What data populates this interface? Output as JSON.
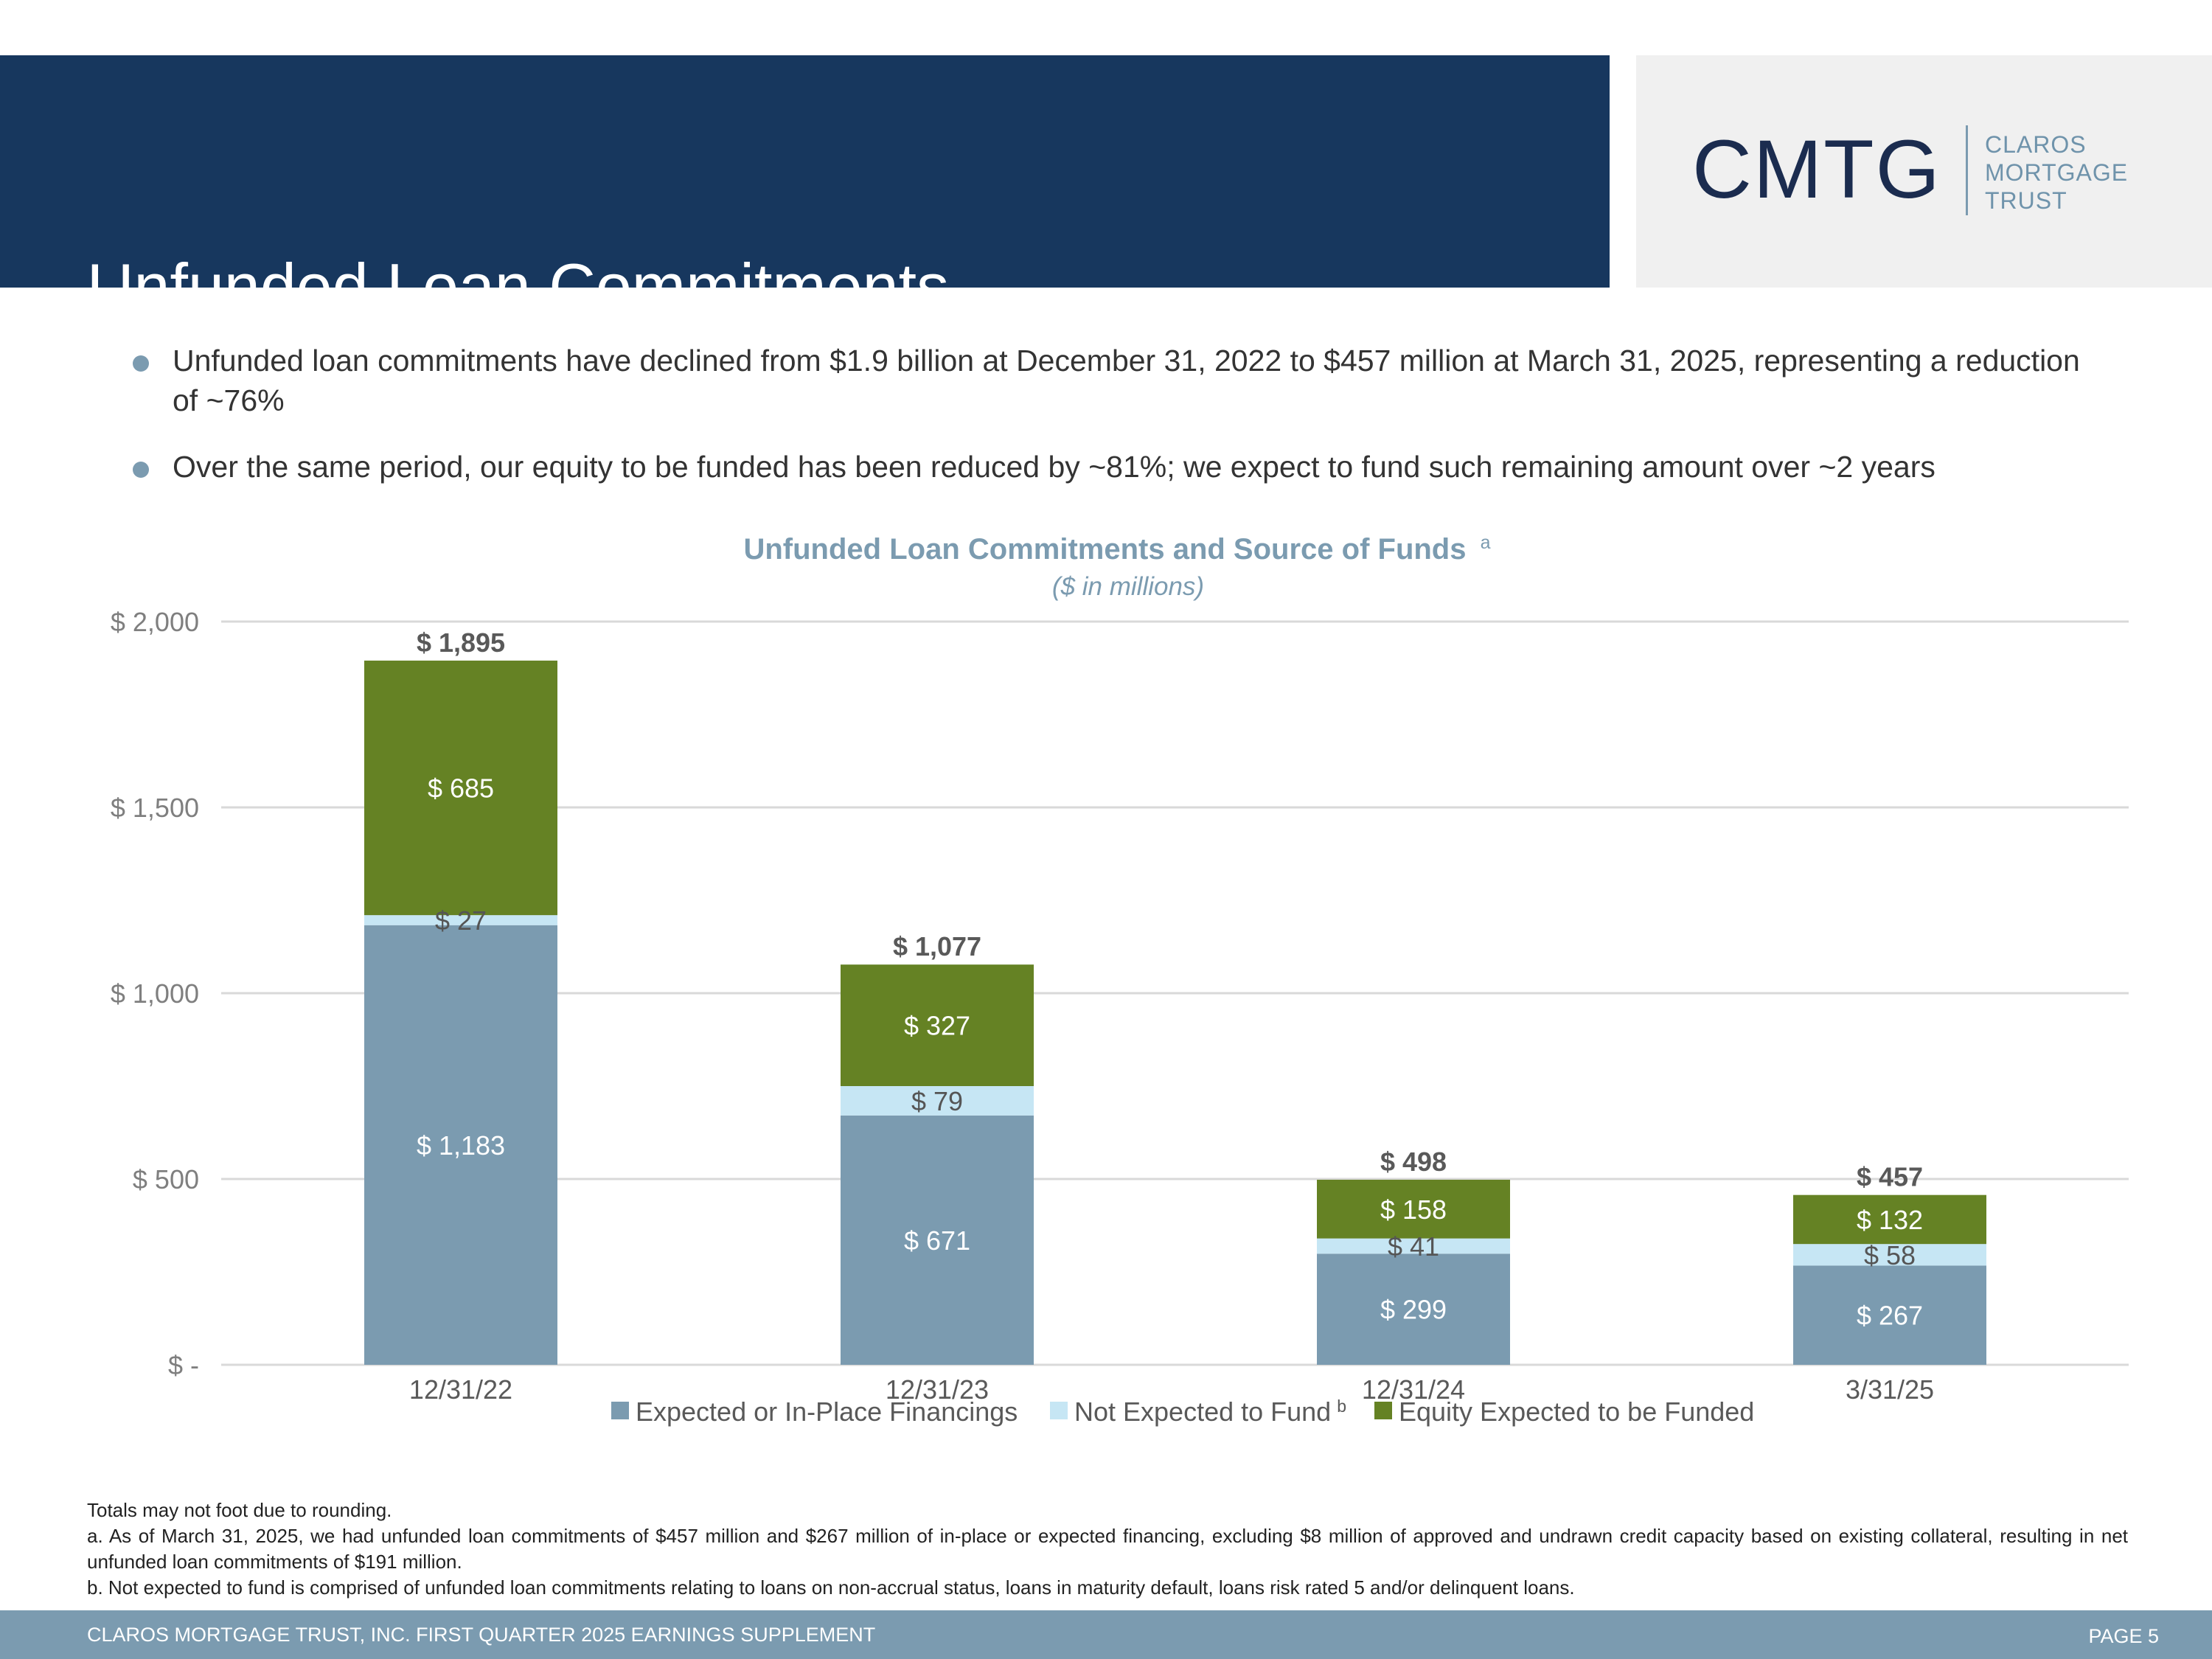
{
  "header": {
    "title": "Unfunded Loan Commitments",
    "logo_mark": "CMTG",
    "logo_words": [
      "CLAROS",
      "MORTGAGE",
      "TRUST"
    ]
  },
  "bullets": [
    "Unfunded loan commitments have declined from $1.9 billion at December 31, 2022 to $457 million at March 31, 2025, representing a reduction of ~76%",
    "Over the same period, our equity to be funded has been reduced by ~81%; we expect to fund such remaining amount over ~2 years"
  ],
  "chart_data": {
    "type": "bar",
    "stacked": true,
    "title": "Unfunded Loan Commitments and Source of Funds",
    "title_superscript": "a",
    "subtitle": "($ in millions)",
    "categories": [
      "12/31/22",
      "12/31/23",
      "12/31/24",
      "3/31/25"
    ],
    "ylim": [
      0,
      2000
    ],
    "yticks": [
      0,
      500,
      1000,
      1500,
      2000
    ],
    "ytick_labels": [
      "$ -",
      "$ 500",
      "$ 1,000",
      "$ 1,500",
      "$ 2,000"
    ],
    "grid": true,
    "legend_position": "bottom",
    "series": [
      {
        "name": "Expected or In-Place Financings",
        "superscript": "",
        "color": "#7b9bb0",
        "label_color": "#ffffff",
        "values": [
          1183,
          671,
          299,
          267
        ],
        "labels": [
          "$ 1,183",
          "$ 671",
          "$ 299",
          "$ 267"
        ]
      },
      {
        "name": "Not Expected to Fund",
        "superscript": "b",
        "color": "#c6e6f4",
        "label_color": "#555555",
        "values": [
          27,
          79,
          41,
          58
        ],
        "labels": [
          "$ 27",
          "$ 79",
          "$ 41",
          "$ 58"
        ]
      },
      {
        "name": "Equity Expected to be Funded",
        "superscript": "",
        "color": "#658224",
        "label_color": "#ffffff",
        "values": [
          685,
          327,
          158,
          132
        ],
        "labels": [
          "$ 685",
          "$ 327",
          "$ 158",
          "$ 132"
        ]
      }
    ],
    "totals": [
      1895,
      1077,
      498,
      457
    ],
    "total_labels": [
      "$ 1,895",
      "$ 1,077",
      "$ 498",
      "$ 457"
    ]
  },
  "footnotes": [
    "Totals may not foot due to rounding.",
    "a. As of March 31, 2025, we had unfunded loan commitments of $457 million and $267 million of in-place or expected financing, excluding $8 million of approved and undrawn credit capacity based on existing collateral, resulting in net unfunded loan commitments of $191 million.",
    "b. Not expected to fund is comprised of unfunded loan commitments relating to loans on non-accrual status, loans in maturity default, loans risk rated 5 and/or delinquent loans."
  ],
  "footer": {
    "left": "CLAROS MORTGAGE TRUST, INC. FIRST QUARTER 2025 EARNINGS SUPPLEMENT",
    "right": "PAGE 5"
  }
}
